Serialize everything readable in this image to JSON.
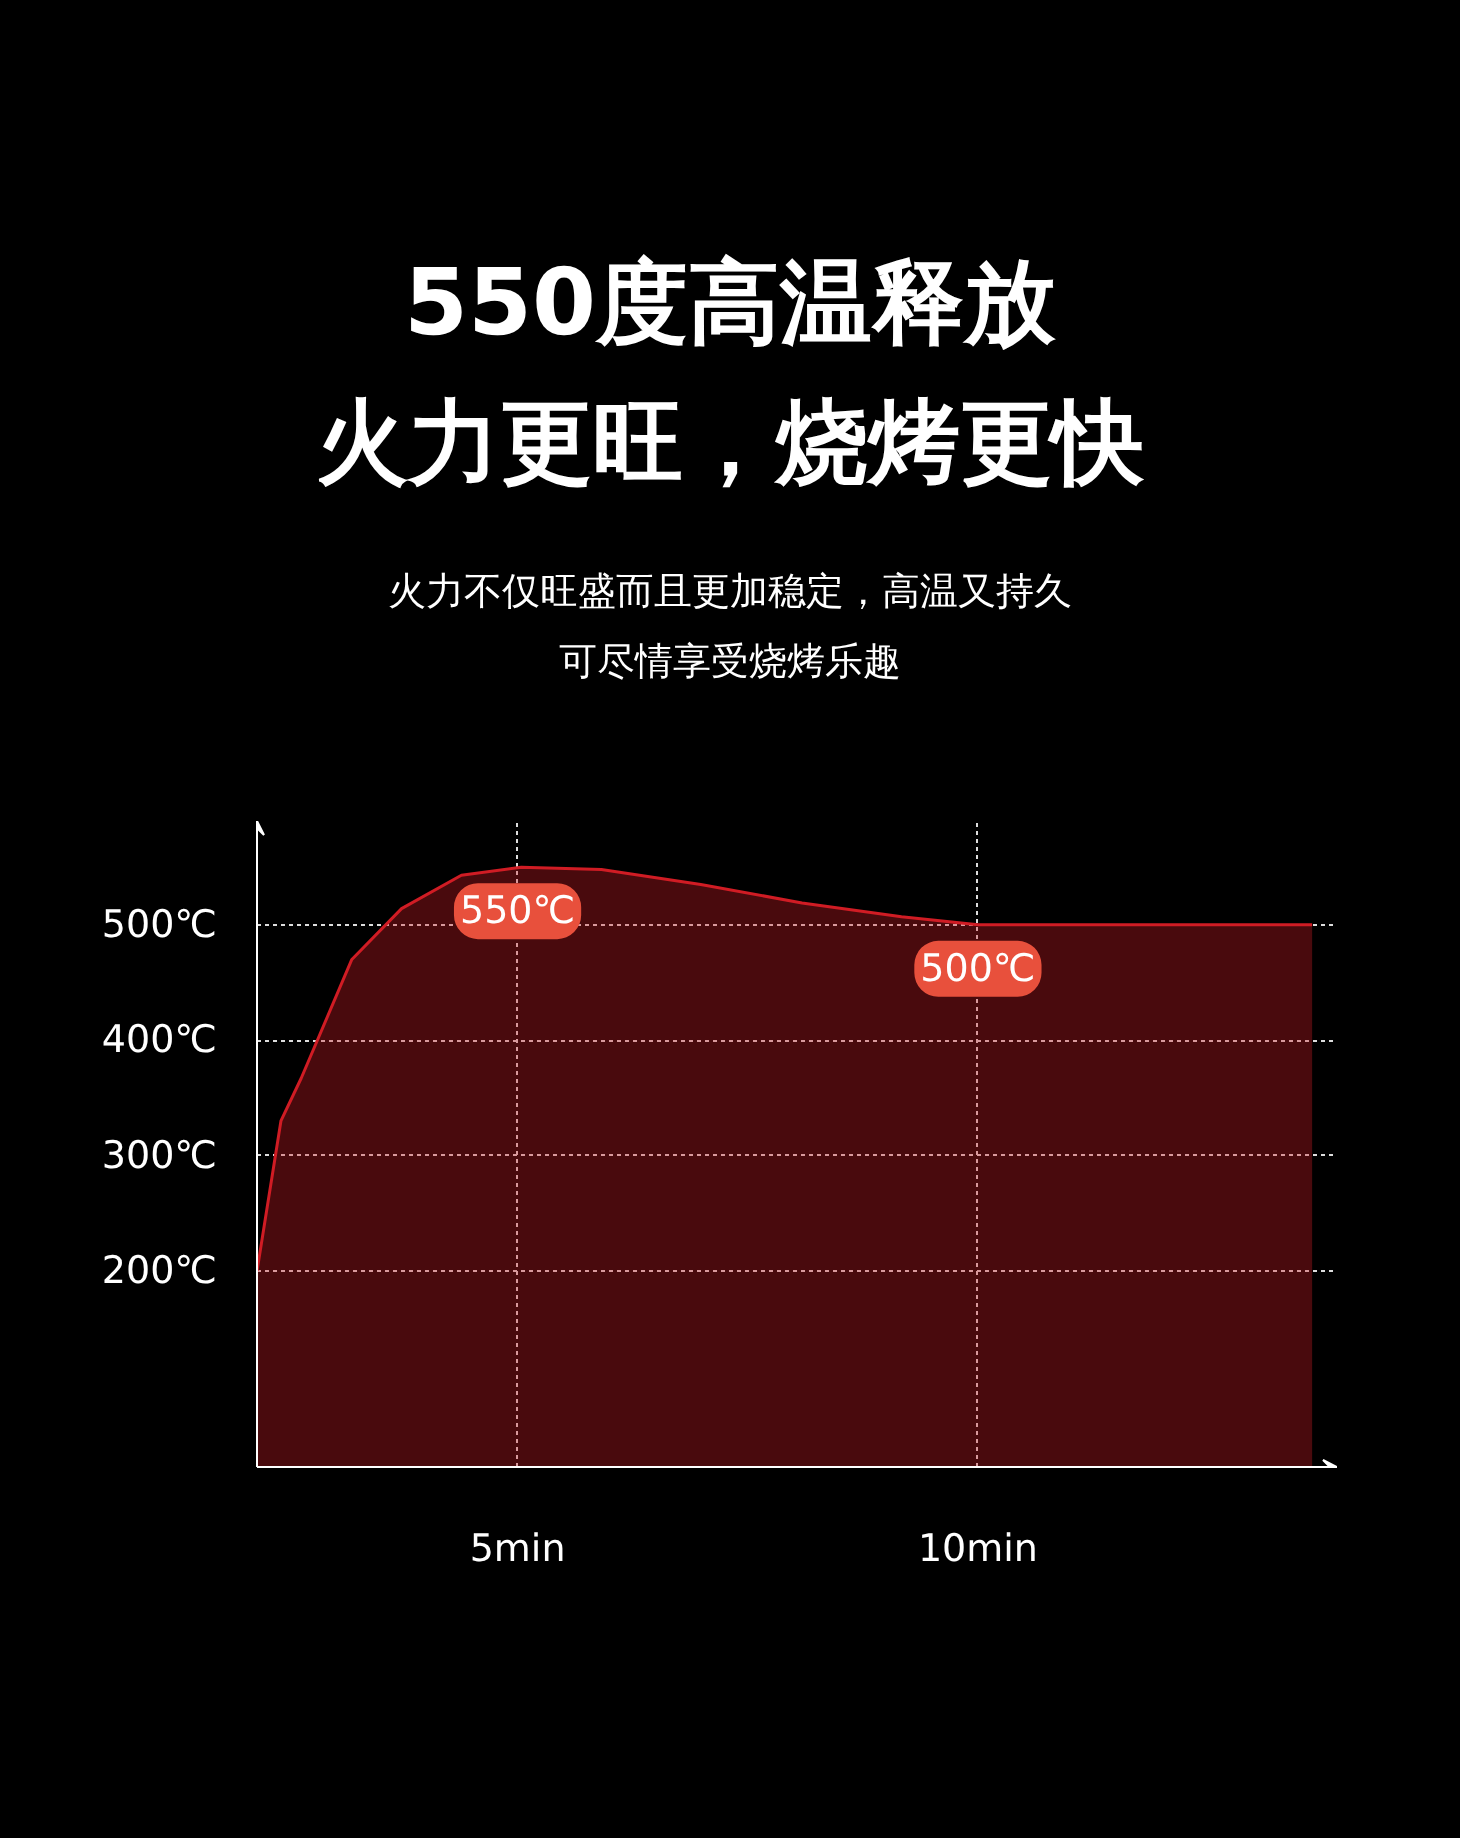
{
  "chart_data": {
    "type": "area",
    "title": "550度高温释放",
    "subtitle": "火力更旺，烧烤更快",
    "x": [
      2.17,
      2.43,
      2.65,
      3.2,
      3.74,
      4.39,
      5.04,
      5.91,
      6.99,
      8.09,
      9.17,
      10,
      13.63
    ],
    "series": [
      {
        "color": "#d01c24",
        "values": [
          200,
          330,
          367,
          470,
          514,
          543,
          550,
          548,
          535,
          519,
          507,
          500,
          500
        ]
      }
    ],
    "xlim": [
      2.17,
      13.9
    ],
    "ylim": [
      30,
      590
    ],
    "xticks": [
      {
        "value": 5,
        "label": "5min"
      },
      {
        "value": 10,
        "label": "10min"
      }
    ],
    "yticks": [
      {
        "value": 200,
        "label": "200℃"
      },
      {
        "value": 300,
        "label": "300℃"
      },
      {
        "value": 400,
        "label": "400℃"
      },
      {
        "value": 500,
        "label": "500℃"
      }
    ],
    "grid": true,
    "annotations": [
      "火力不仅旺盛而且更加稳定，高温又持久",
      "可尽情享受烧烤乐趣",
      {
        "text": "550℃",
        "x": 5,
        "y": 550
      },
      {
        "text": "500℃",
        "x": 10,
        "y": 500
      }
    ]
  }
}
